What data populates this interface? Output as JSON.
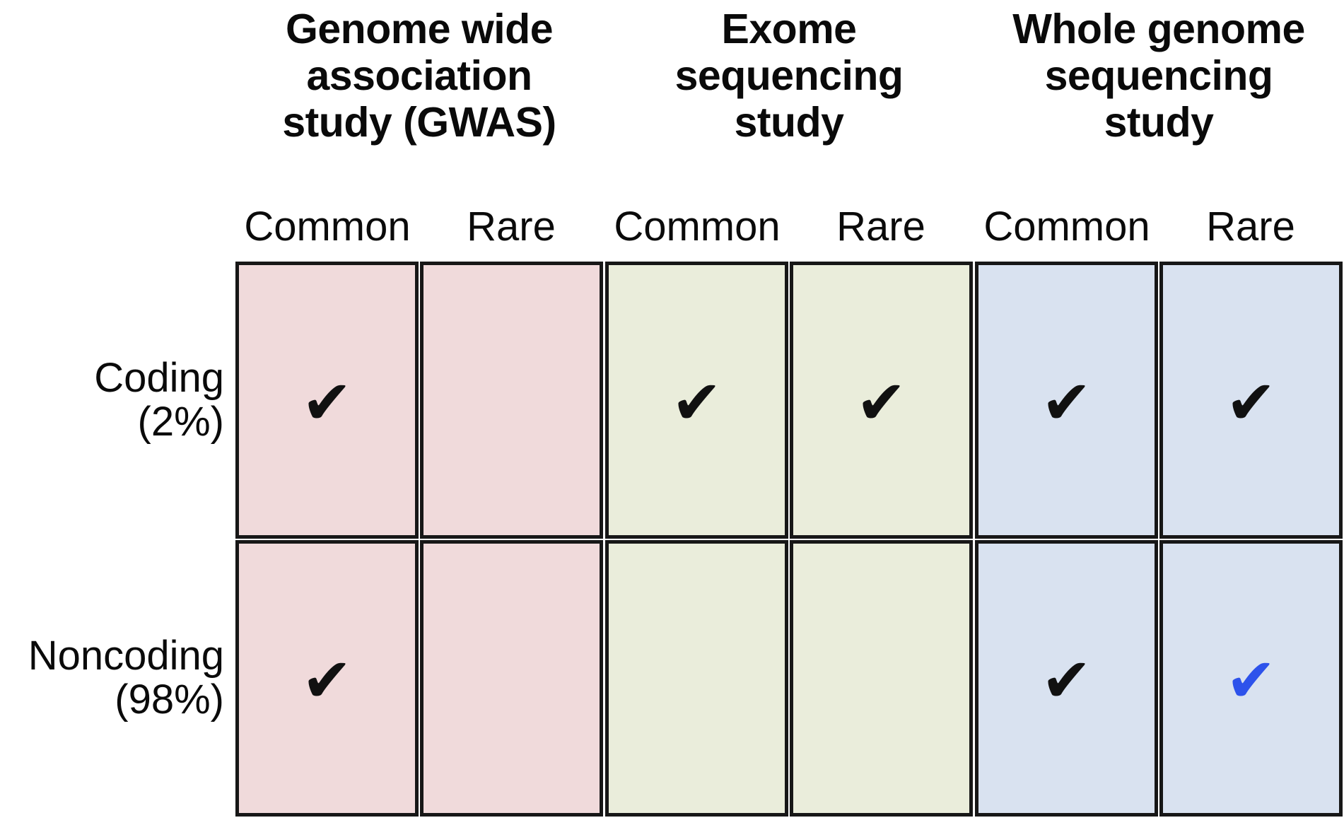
{
  "figure": {
    "groups": [
      {
        "title_line1": "Genome wide",
        "title_line2": "association",
        "title_line3": "study (GWAS)"
      },
      {
        "title_line1": "Exome",
        "title_line2": "sequencing",
        "title_line3": "study"
      },
      {
        "title_line1": "Whole genome",
        "title_line2": "sequencing",
        "title_line3": "study"
      }
    ],
    "variant_labels": {
      "common": "Common",
      "rare": "Rare"
    },
    "row_labels": [
      {
        "name": "Coding",
        "pct": "(2%)"
      },
      {
        "name": "Noncoding",
        "pct": "(98%)"
      }
    ],
    "colors": {
      "gwas_cell": "#f0dadb",
      "exome_cell": "#eaeddb",
      "wgs_cell": "#d9e2f0",
      "border": "#171717",
      "black_check": "#111111",
      "blue_check": "#2d52eb"
    },
    "cells": {
      "coding": {
        "gwas_common": {
          "glyph": "✔",
          "color": "#111111"
        },
        "gwas_rare": {
          "glyph": "",
          "color": ""
        },
        "exome_common": {
          "glyph": "✔",
          "color": "#111111"
        },
        "exome_rare": {
          "glyph": "✔",
          "color": "#111111"
        },
        "wgs_common": {
          "glyph": "✔",
          "color": "#111111"
        },
        "wgs_rare": {
          "glyph": "✔",
          "color": "#111111"
        }
      },
      "noncoding": {
        "gwas_common": {
          "glyph": "✔",
          "color": "#111111"
        },
        "gwas_rare": {
          "glyph": "",
          "color": ""
        },
        "exome_common": {
          "glyph": "",
          "color": ""
        },
        "exome_rare": {
          "glyph": "",
          "color": ""
        },
        "wgs_common": {
          "glyph": "✔",
          "color": "#111111"
        },
        "wgs_rare": {
          "glyph": "✔",
          "color": "#2d52eb"
        }
      }
    }
  },
  "chart_data": {
    "type": "table",
    "column_groups": [
      "Genome wide association study (GWAS)",
      "Exome sequencing study",
      "Whole genome sequencing study"
    ],
    "columns": [
      "GWAS Common",
      "GWAS Rare",
      "Exome Common",
      "Exome Rare",
      "Whole genome Common",
      "Whole genome Rare"
    ],
    "rows": [
      {
        "label": "Coding (2%)",
        "values": [
          true,
          false,
          true,
          true,
          true,
          true
        ]
      },
      {
        "label": "Noncoding (98%)",
        "values": [
          true,
          false,
          false,
          false,
          true,
          true
        ]
      }
    ],
    "highlighted_cell": {
      "row": "Noncoding (98%)",
      "column": "Whole genome Rare",
      "check_color": "#2d52eb"
    }
  }
}
